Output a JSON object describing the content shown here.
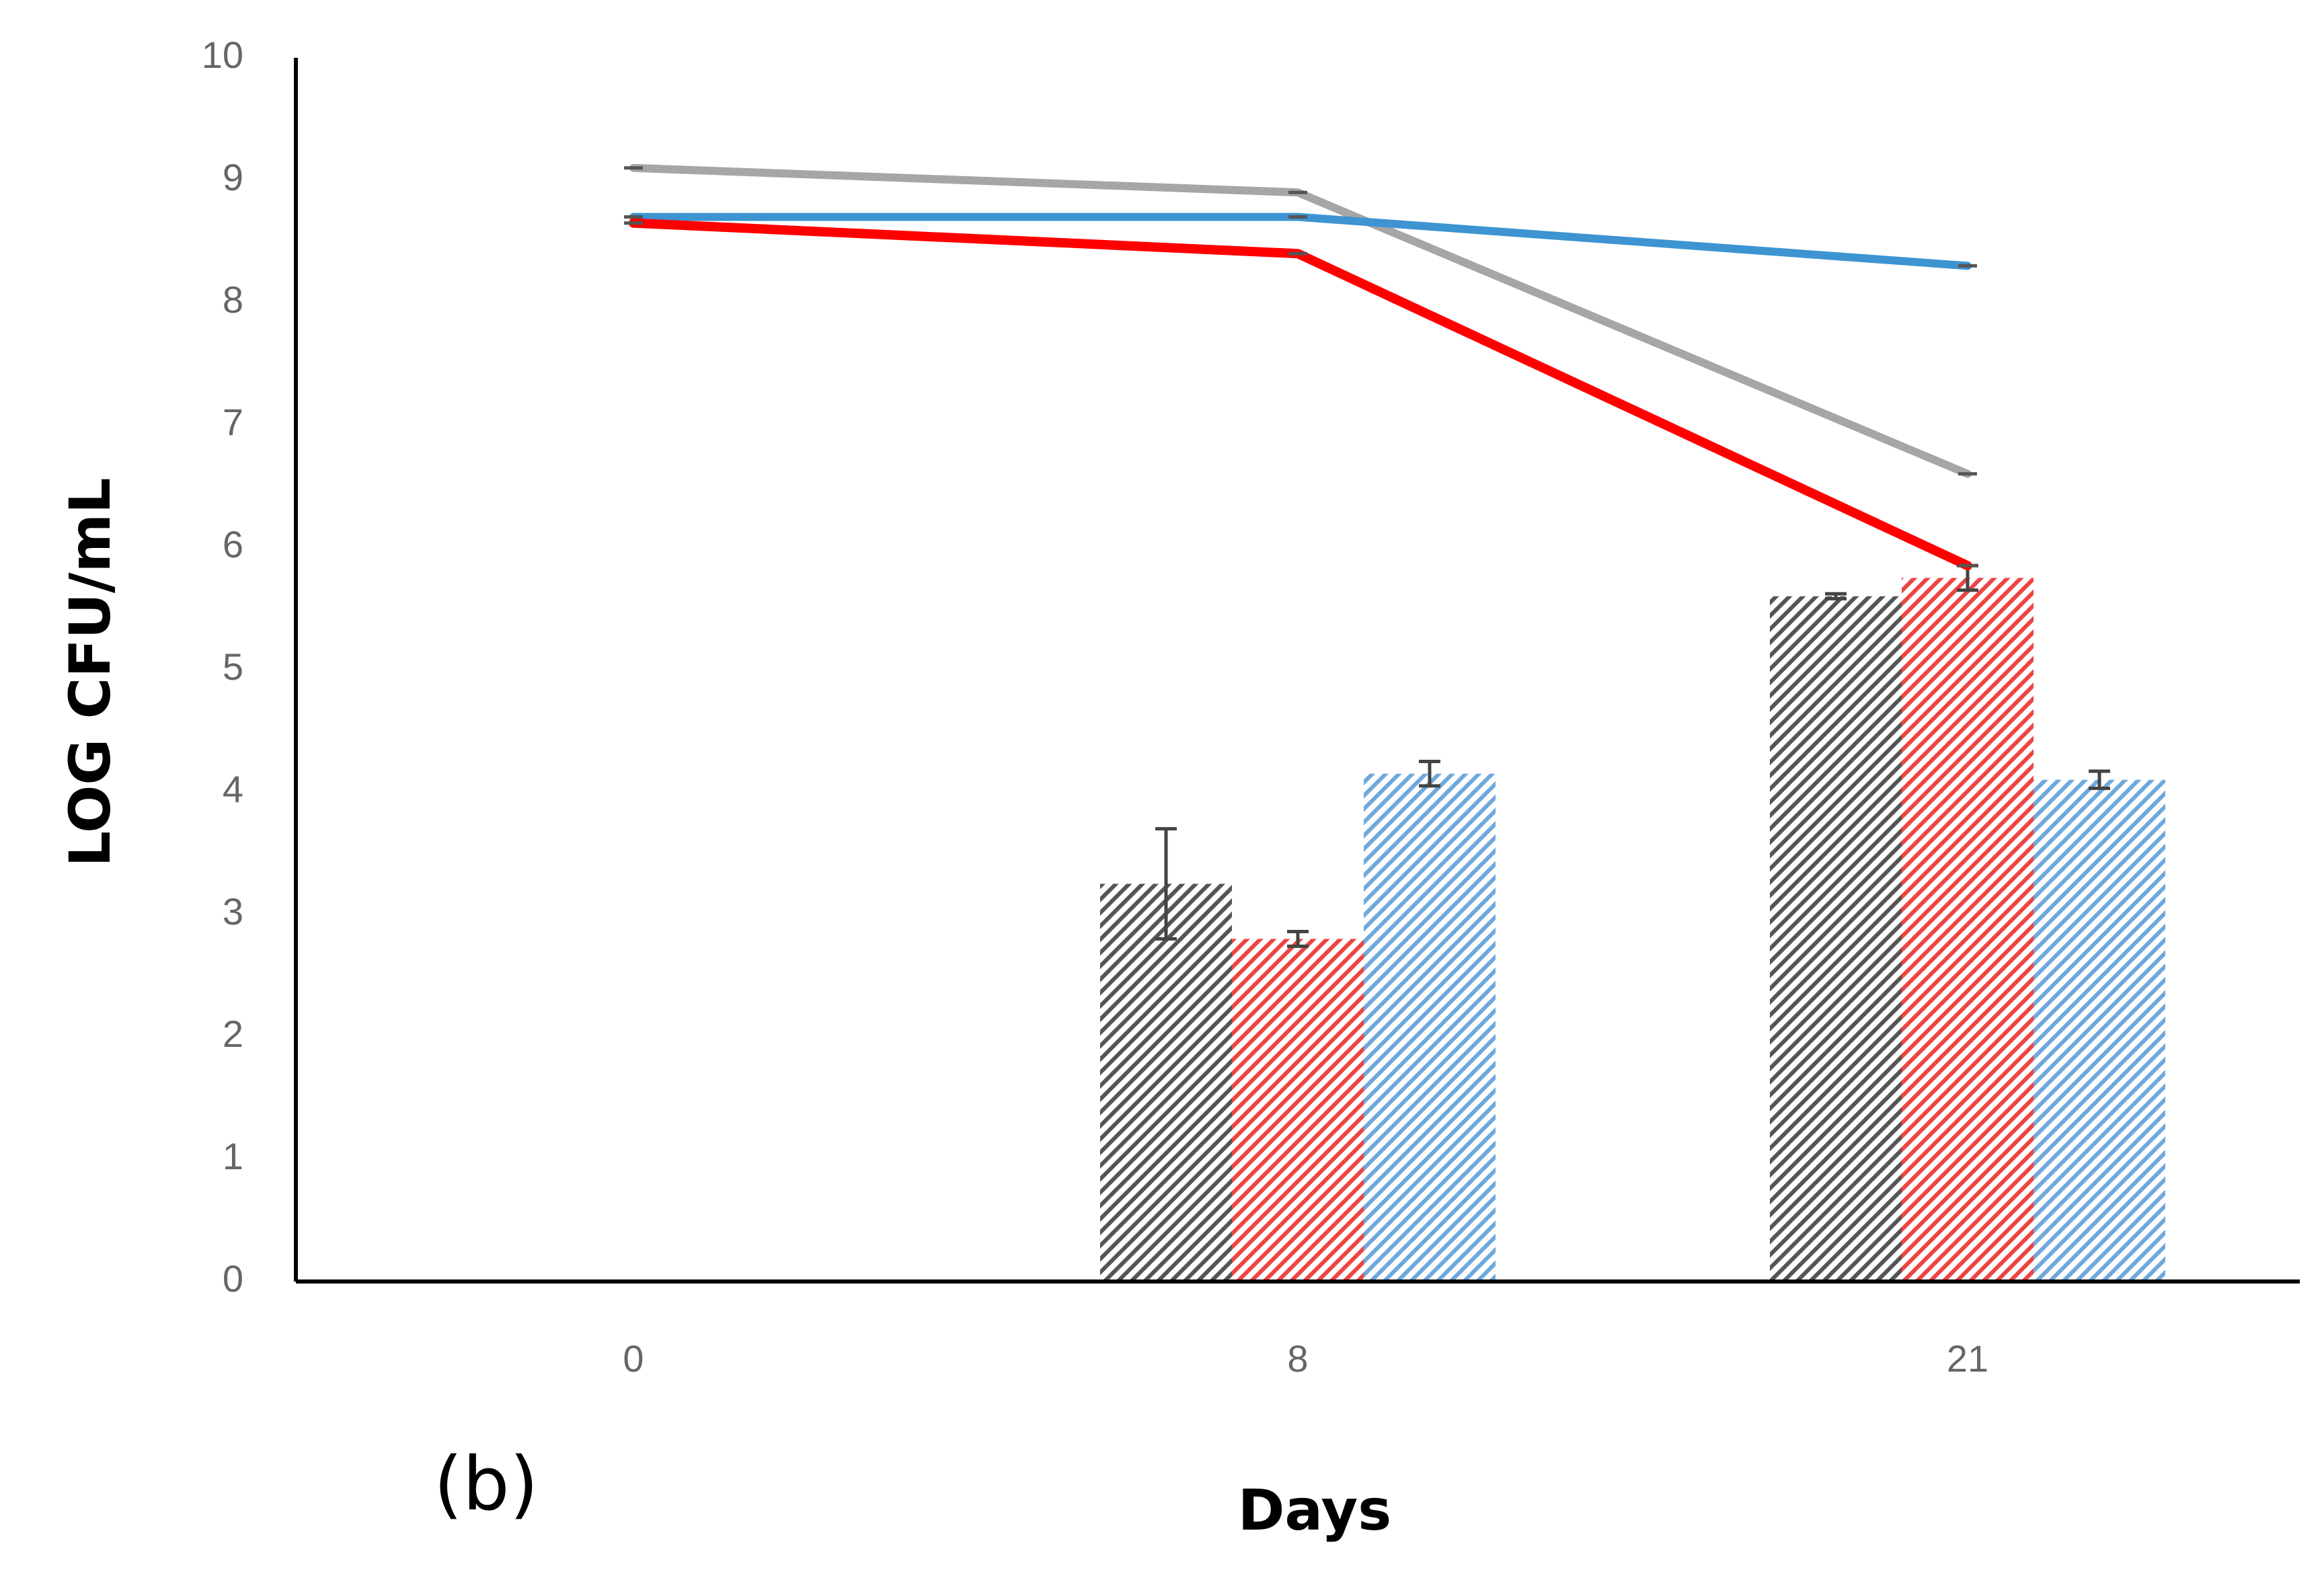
{
  "chart_data": {
    "type": "bar+line",
    "panel_label": "(b)",
    "xlabel": "Days",
    "ylabel": "LOG CFU/mL",
    "categories": [
      "0",
      "8",
      "21"
    ],
    "ylim": [
      0,
      10
    ],
    "yticks": [
      "0",
      "1",
      "2",
      "3",
      "4",
      "5",
      "6",
      "7",
      "8",
      "9",
      "10"
    ],
    "grid": false,
    "legend": "none",
    "bar_series": [
      {
        "name": "gray bars",
        "color": "#555555",
        "values": [
          null,
          3.25,
          5.6
        ],
        "errors": [
          null,
          0.45,
          0.02
        ]
      },
      {
        "name": "red bars",
        "color": "#ee4444",
        "values": [
          null,
          2.8,
          5.75
        ],
        "errors": [
          null,
          0.06,
          0.1
        ]
      },
      {
        "name": "blue bars",
        "color": "#6fa8dc",
        "values": [
          null,
          4.15,
          4.1
        ],
        "errors": [
          null,
          0.1,
          0.07
        ]
      }
    ],
    "line_series": [
      {
        "name": "gray line",
        "color": "#a6a6a6",
        "values": [
          9.1,
          8.9,
          6.6
        ]
      },
      {
        "name": "blue line",
        "color": "#3d94d1",
        "values": [
          8.7,
          8.7,
          8.3
        ]
      },
      {
        "name": "red line",
        "color": "#ff0000",
        "values": [
          8.65,
          8.4,
          5.85
        ]
      }
    ]
  }
}
